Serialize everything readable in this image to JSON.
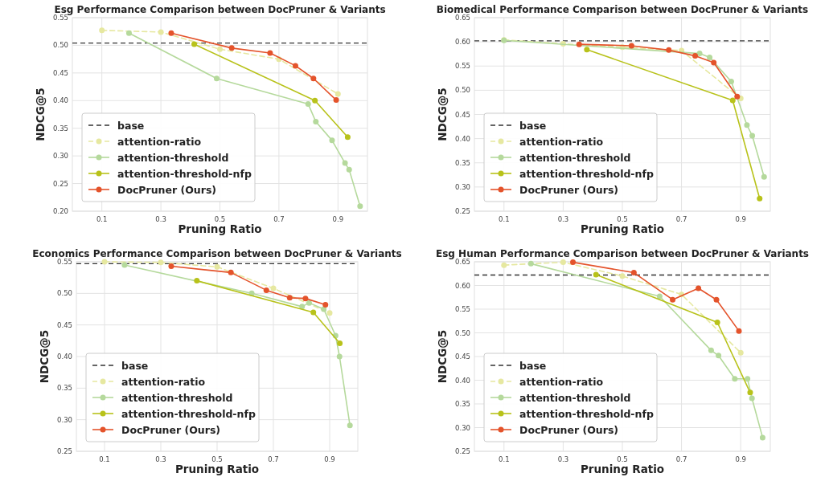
{
  "chart_data": [
    {
      "type": "line",
      "title": "Esg Performance Comparison between DocPruner & Variants",
      "xlabel": "Pruning Ratio",
      "ylabel": "NDCG@5",
      "xlim": [
        0,
        1
      ],
      "xticks": [
        0.1,
        0.3,
        0.5,
        0.7,
        0.9
      ],
      "ylim": [
        0.2,
        0.55
      ],
      "yticks": [
        {
          "value": 0.2,
          "label": "0.20"
        },
        0.25,
        {
          "value": 0.3,
          "label": "0.30"
        },
        0.35,
        {
          "value": 0.4,
          "label": "0.40"
        },
        0.45,
        {
          "value": 0.5,
          "label": "0.50"
        },
        0.55
      ],
      "grid": true,
      "legend": "bottom left",
      "marker": "circle",
      "ref_lines": [
        {
          "axis": "y",
          "value": 0.504,
          "label": "base",
          "color": "#333333",
          "line_style": "dashed"
        }
      ],
      "series": [
        {
          "name": "attention-ratio",
          "color": "#e6e8a0",
          "line_style": "dashed",
          "x": [
            0.1,
            0.3,
            0.5,
            0.7,
            0.9
          ],
          "values": [
            0.527,
            0.524,
            0.493,
            0.475,
            0.412
          ]
        },
        {
          "name": "attention-threshold",
          "color": "#b5d99c",
          "line_style": "solid",
          "x": [
            0.192,
            0.489,
            0.799,
            0.825,
            0.88,
            0.924,
            0.938,
            0.975
          ],
          "values": [
            0.522,
            0.44,
            0.394,
            0.362,
            0.328,
            0.287,
            0.275,
            0.209
          ]
        },
        {
          "name": "attention-threshold-nfp",
          "color": "#b8c21a",
          "line_style": "solid",
          "x": [
            0.413,
            0.822,
            0.933
          ],
          "values": [
            0.502,
            0.4,
            0.334
          ]
        },
        {
          "name": "DocPruner (Ours)",
          "color": "#e4532b",
          "line_style": "solid",
          "x": [
            0.335,
            0.54,
            0.67,
            0.756,
            0.817,
            0.894
          ],
          "values": [
            0.522,
            0.495,
            0.486,
            0.463,
            0.44,
            0.401
          ]
        }
      ]
    },
    {
      "type": "line",
      "title": "Biomedical Performance Comparison between DocPruner & Variants",
      "xlabel": "Pruning Ratio",
      "ylabel": "NDCG@5",
      "xlim": [
        0,
        1
      ],
      "xticks": [
        0.1,
        0.3,
        0.5,
        0.7,
        0.9
      ],
      "ylim": [
        0.25,
        0.65
      ],
      "yticks": [
        0.25,
        {
          "value": 0.3,
          "label": "0.30"
        },
        0.35,
        {
          "value": 0.4,
          "label": "0.40"
        },
        0.45,
        {
          "value": 0.5,
          "label": "0.50"
        },
        0.55,
        {
          "value": 0.6,
          "label": "0.60"
        },
        0.65
      ],
      "grid": true,
      "legend": "bottom left",
      "marker": "circle",
      "ref_lines": [
        {
          "axis": "y",
          "value": 0.602,
          "label": "base",
          "color": "#333333",
          "line_style": "dashed"
        }
      ],
      "series": [
        {
          "name": "attention-ratio",
          "color": "#e6e8a0",
          "line_style": "dashed",
          "x": [
            0.1,
            0.3,
            0.5,
            0.7,
            0.9
          ],
          "values": [
            0.604,
            0.596,
            0.589,
            0.582,
            0.483
          ]
        },
        {
          "name": "attention-threshold",
          "color": "#b5d99c",
          "line_style": "solid",
          "x": [
            0.1,
            0.761,
            0.795,
            0.868,
            0.921,
            0.939,
            0.979
          ],
          "values": [
            0.603,
            0.576,
            0.568,
            0.518,
            0.428,
            0.406,
            0.321
          ]
        },
        {
          "name": "attention-threshold-nfp",
          "color": "#b8c21a",
          "line_style": "solid",
          "x": [
            0.38,
            0.873,
            0.964
          ],
          "values": [
            0.584,
            0.479,
            0.276
          ]
        },
        {
          "name": "DocPruner (Ours)",
          "color": "#e4532b",
          "line_style": "solid",
          "x": [
            0.354,
            0.531,
            0.657,
            0.746,
            0.809,
            0.888
          ],
          "values": [
            0.595,
            0.592,
            0.583,
            0.571,
            0.557,
            0.487
          ]
        }
      ]
    },
    {
      "type": "line",
      "title": "Economics Performance Comparison between DocPruner & Variants",
      "xlabel": "Pruning Ratio",
      "ylabel": "NDCG@5",
      "xlim": [
        0,
        1
      ],
      "xticks": [
        0.1,
        0.3,
        0.5,
        0.7,
        0.9
      ],
      "ylim": [
        0.25,
        0.55
      ],
      "yticks": [
        0.25,
        {
          "value": 0.3,
          "label": "0.30"
        },
        0.35,
        {
          "value": 0.4,
          "label": "0.40"
        },
        0.45,
        {
          "value": 0.5,
          "label": "0.50"
        },
        0.55
      ],
      "grid": true,
      "legend": "bottom left",
      "marker": "circle",
      "ref_lines": [
        {
          "axis": "y",
          "value": 0.547,
          "label": "base",
          "color": "#333333",
          "line_style": "dashed"
        }
      ],
      "series": [
        {
          "name": "attention-ratio",
          "color": "#e6e8a0",
          "line_style": "dashed",
          "x": [
            0.1,
            0.3,
            0.5,
            0.7,
            0.9
          ],
          "values": [
            0.55,
            0.549,
            0.542,
            0.508,
            0.469
          ]
        },
        {
          "name": "attention-threshold",
          "color": "#b5d99c",
          "line_style": "solid",
          "x": [
            0.171,
            0.623,
            0.802,
            0.827,
            0.879,
            0.921,
            0.935,
            0.972
          ],
          "values": [
            0.545,
            0.5,
            0.479,
            0.485,
            0.475,
            0.433,
            0.4,
            0.291
          ]
        },
        {
          "name": "attention-threshold-nfp",
          "color": "#b8c21a",
          "line_style": "solid",
          "x": [
            0.428,
            0.842,
            0.936
          ],
          "values": [
            0.52,
            0.47,
            0.421
          ]
        },
        {
          "name": "DocPruner (Ours)",
          "color": "#e4532b",
          "line_style": "solid",
          "x": [
            0.337,
            0.549,
            0.675,
            0.758,
            0.814,
            0.885
          ],
          "values": [
            0.543,
            0.533,
            0.505,
            0.493,
            0.492,
            0.482
          ]
        }
      ]
    },
    {
      "type": "line",
      "title": "Esg Human Performance Comparison between DocPruner & Variants",
      "xlabel": "Pruning Ratio",
      "ylabel": "NDCG@5",
      "xlim": [
        0,
        1
      ],
      "xticks": [
        0.1,
        0.3,
        0.5,
        0.7,
        0.9
      ],
      "ylim": [
        0.25,
        0.65
      ],
      "yticks": [
        0.25,
        {
          "value": 0.3,
          "label": "0.30"
        },
        0.35,
        {
          "value": 0.4,
          "label": "0.40"
        },
        0.45,
        {
          "value": 0.5,
          "label": "0.50"
        },
        0.55,
        {
          "value": 0.6,
          "label": "0.60"
        },
        0.65
      ],
      "grid": true,
      "legend": "bottom left",
      "marker": "circle",
      "ref_lines": [
        {
          "axis": "y",
          "value": 0.622,
          "label": "base",
          "color": "#333333",
          "line_style": "dashed"
        }
      ],
      "series": [
        {
          "name": "attention-ratio",
          "color": "#e6e8a0",
          "line_style": "dashed",
          "x": [
            0.1,
            0.3,
            0.5,
            0.7,
            0.9
          ],
          "values": [
            0.643,
            0.649,
            0.62,
            0.581,
            0.458
          ]
        },
        {
          "name": "attention-threshold",
          "color": "#b5d99c",
          "line_style": "solid",
          "x": [
            0.191,
            0.626,
            0.8,
            0.825,
            0.88,
            0.923,
            0.938,
            0.974
          ],
          "values": [
            0.646,
            0.577,
            0.463,
            0.452,
            0.403,
            0.403,
            0.362,
            0.279
          ]
        },
        {
          "name": "attention-threshold-nfp",
          "color": "#b8c21a",
          "line_style": "solid",
          "x": [
            0.411,
            0.821,
            0.932
          ],
          "values": [
            0.623,
            0.522,
            0.374
          ]
        },
        {
          "name": "DocPruner (Ours)",
          "color": "#e4532b",
          "line_style": "solid",
          "x": [
            0.333,
            0.539,
            0.67,
            0.757,
            0.818,
            0.894
          ],
          "values": [
            0.649,
            0.627,
            0.57,
            0.594,
            0.57,
            0.504
          ]
        }
      ]
    }
  ]
}
